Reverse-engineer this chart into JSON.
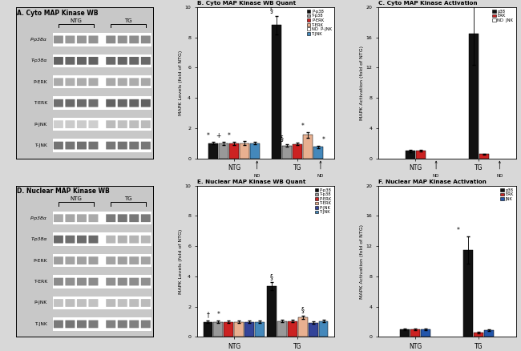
{
  "panel_A_title": "A. Cyto MAP Kinase WB",
  "panel_B_title": "B. Cyto MAP Kinase WB Quant",
  "panel_C_title": "C. Cyto MAP Kinase Activation",
  "panel_D_title": "D. Nuclear MAP Kinase WB",
  "panel_E_title": "E. Nuclear MAP Kinase WB Quant",
  "panel_F_title": "F. Nuclear MAP Kinase Activation",
  "panel_B_ylabel": "MAPK Levels (fold of NTG)",
  "panel_C_ylabel": "MAPK Activation (fold of NTG)",
  "panel_E_ylabel": "MAPK Levels (fold of NTG)",
  "panel_F_ylabel": "MAPK Activation (fold of NTG)",
  "wb_labels": [
    "P-p38α",
    "T-p38α",
    "P-ERK",
    "T-ERK",
    "P-JNK",
    "T-JNK"
  ],
  "wb_A_bands": {
    "P-p38α": {
      "ntg": [
        0.45,
        0.42,
        0.43
      ],
      "tg": [
        0.48,
        0.46,
        0.47
      ]
    },
    "T-p38α": {
      "ntg": [
        0.65,
        0.63,
        0.64
      ],
      "tg": [
        0.62,
        0.64,
        0.63
      ]
    },
    "P-ERK": {
      "ntg": [
        0.35,
        0.33,
        0.34
      ],
      "tg": [
        0.36,
        0.35,
        0.34
      ]
    },
    "T-ERK": {
      "ntg": [
        0.6,
        0.62,
        0.61
      ],
      "tg": [
        0.65,
        0.63,
        0.64
      ]
    },
    "P-JNK": {
      "ntg": [
        0.2,
        0.22,
        0.21
      ],
      "tg": [
        0.28,
        0.26,
        0.27
      ]
    },
    "T-JNK": {
      "ntg": [
        0.58,
        0.57,
        0.59
      ],
      "tg": [
        0.56,
        0.58,
        0.57
      ]
    }
  },
  "wb_D_bands": {
    "P-p38α": {
      "ntg": [
        0.35,
        0.37,
        0.36
      ],
      "tg": [
        0.55,
        0.57,
        0.56
      ]
    },
    "T-p38α": {
      "ntg": [
        0.62,
        0.6,
        0.61
      ],
      "tg": [
        0.3,
        0.32,
        0.31
      ]
    },
    "P-ERK": {
      "ntg": [
        0.4,
        0.38,
        0.39
      ],
      "tg": [
        0.38,
        0.4,
        0.39
      ]
    },
    "T-ERK": {
      "ntg": [
        0.48,
        0.46,
        0.47
      ],
      "tg": [
        0.46,
        0.48,
        0.47
      ]
    },
    "P-JNK": {
      "ntg": [
        0.25,
        0.27,
        0.26
      ],
      "tg": [
        0.28,
        0.26,
        0.27
      ]
    },
    "T-JNK": {
      "ntg": [
        0.55,
        0.57,
        0.56
      ],
      "tg": [
        0.52,
        0.54,
        0.53
      ]
    }
  },
  "panel_B_data": {
    "NTG": {
      "P-p38": 1.0,
      "T-p38": 1.0,
      "P-ERK": 1.0,
      "T-ERK": 1.0,
      "P-JNK": null,
      "T-JNK": 1.0
    },
    "TG": {
      "P-p38": 8.8,
      "T-p38": 0.85,
      "P-ERK": 0.95,
      "T-ERK": 1.55,
      "P-JNK": null,
      "T-JNK": 0.75
    }
  },
  "panel_B_errors": {
    "NTG": {
      "P-p38": 0.08,
      "T-p38": 0.1,
      "P-ERK": 0.1,
      "T-ERK": 0.12,
      "P-JNK": null,
      "T-JNK": 0.08
    },
    "TG": {
      "P-p38": 0.6,
      "T-p38": 0.08,
      "P-ERK": 0.08,
      "T-ERK": 0.18,
      "P-JNK": null,
      "T-JNK": 0.08
    }
  },
  "panel_C_data": {
    "NTG": {
      "p38": 1.0,
      "ERK": 1.0,
      "JNK": null
    },
    "TG": {
      "p38": 16.5,
      "ERK": 0.55,
      "JNK": null
    }
  },
  "panel_C_errors": {
    "NTG": {
      "p38": 0.15,
      "ERK": 0.12,
      "JNK": null
    },
    "TG": {
      "p38": 4.2,
      "ERK": 0.08,
      "JNK": null
    }
  },
  "panel_E_data": {
    "NTG": {
      "P-p38": 1.0,
      "T-p38": 1.0,
      "P-ERK": 1.0,
      "T-ERK": 1.0,
      "P-JNK": 1.0,
      "T-JNK": 1.0
    },
    "TG": {
      "P-p38": 3.35,
      "T-p38": 1.05,
      "P-ERK": 1.05,
      "T-ERK": 1.3,
      "P-JNK": 0.95,
      "T-JNK": 1.05
    }
  },
  "panel_E_errors": {
    "NTG": {
      "P-p38": 0.08,
      "T-p38": 0.08,
      "P-ERK": 0.08,
      "T-ERK": 0.08,
      "P-JNK": 0.08,
      "T-JNK": 0.08
    },
    "TG": {
      "P-p38": 0.25,
      "T-p38": 0.08,
      "P-ERK": 0.08,
      "T-ERK": 0.12,
      "P-JNK": 0.08,
      "T-JNK": 0.08
    }
  },
  "panel_F_data": {
    "NTG": {
      "p38": 1.0,
      "ERK": 1.0,
      "JNK": 1.0
    },
    "TG": {
      "p38": 11.5,
      "ERK": 0.6,
      "JNK": 0.9
    }
  },
  "panel_F_errors": {
    "NTG": {
      "p38": 0.12,
      "ERK": 0.08,
      "JNK": 0.08
    },
    "TG": {
      "p38": 1.8,
      "ERK": 0.08,
      "JNK": 0.08
    }
  },
  "colors": {
    "P-p38": "#111111",
    "T-p38": "#999999",
    "P-ERK": "#cc2222",
    "T-ERK": "#e8b090",
    "P-JNK": "#334499",
    "T-JNK": "#4488bb",
    "p38": "#111111",
    "ERK": "#cc2222",
    "JNK": "#2255aa"
  },
  "background": "#d8d8d8"
}
